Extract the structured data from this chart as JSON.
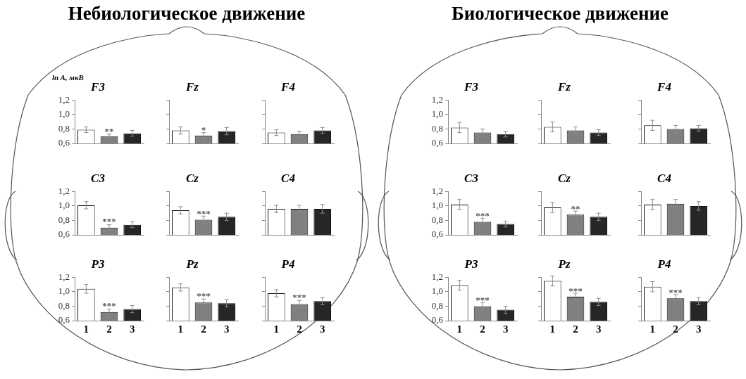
{
  "chart_data": [
    {
      "type": "bar",
      "title": "F3",
      "ylabel": "ln A, мкВ",
      "annotations": [
        "Небиологическое движение",
        {
          "text": "**",
          "x": "2",
          "y": 0.75
        }
      ],
      "categories": [
        "1",
        "2",
        "3"
      ],
      "values": [
        0.79,
        0.7,
        0.74
      ],
      "errors": [
        0.04,
        0.03,
        0.04
      ],
      "colors": [
        "#ffffff",
        "#808080",
        "#262626"
      ],
      "ylim": [
        0.6,
        1.2
      ],
      "yticks": [
        {
          "value": 0.6,
          "label": "0,6"
        },
        {
          "value": 0.8,
          "label": "0,8"
        },
        {
          "value": 1.0,
          "label": "1,0"
        },
        {
          "value": 1.2,
          "label": "1,2"
        }
      ],
      "grid": false,
      "legend": false,
      "tick_labels": "y"
    },
    {
      "type": "bar",
      "title": "Fz",
      "annotations": [
        {
          "text": "*",
          "x": "2",
          "y": 0.77
        }
      ],
      "categories": [
        "1",
        "2",
        "3"
      ],
      "values": [
        0.78,
        0.71,
        0.77
      ],
      "errors": [
        0.05,
        0.04,
        0.05
      ],
      "colors": [
        "#ffffff",
        "#808080",
        "#262626"
      ],
      "ylim": [
        0.6,
        1.2
      ],
      "yticks": [
        {
          "value": 0.6,
          "label": null
        },
        {
          "value": 0.8,
          "label": null
        },
        {
          "value": 1.0,
          "label": null
        },
        {
          "value": 1.2,
          "label": null
        }
      ],
      "grid": false,
      "legend": false,
      "tick_labels": false
    },
    {
      "type": "bar",
      "title": "F4",
      "categories": [
        "1",
        "2",
        "3"
      ],
      "values": [
        0.75,
        0.73,
        0.78
      ],
      "errors": [
        0.04,
        0.04,
        0.04
      ],
      "colors": [
        "#ffffff",
        "#808080",
        "#262626"
      ],
      "ylim": [
        0.6,
        1.2
      ],
      "yticks": [
        {
          "value": 0.6,
          "label": null
        },
        {
          "value": 0.8,
          "label": null
        },
        {
          "value": 1.0,
          "label": null
        },
        {
          "value": 1.2,
          "label": null
        }
      ],
      "grid": false,
      "legend": false,
      "tick_labels": false
    },
    {
      "type": "bar",
      "title": "C3",
      "annotations": [
        {
          "text": "***",
          "x": "2",
          "y": 0.77
        }
      ],
      "categories": [
        "1",
        "2",
        "3"
      ],
      "values": [
        1.01,
        0.7,
        0.74
      ],
      "errors": [
        0.05,
        0.04,
        0.04
      ],
      "colors": [
        "#ffffff",
        "#808080",
        "#262626"
      ],
      "ylim": [
        0.6,
        1.2
      ],
      "yticks": [
        {
          "value": 0.6,
          "label": "0,6"
        },
        {
          "value": 0.8,
          "label": "0,8"
        },
        {
          "value": 1.0,
          "label": "1,0"
        },
        {
          "value": 1.2,
          "label": "1,2"
        }
      ],
      "grid": false,
      "legend": false,
      "tick_labels": "y"
    },
    {
      "type": "bar",
      "title": "Cz",
      "annotations": [
        {
          "text": "***",
          "x": "2",
          "y": 0.88
        }
      ],
      "categories": [
        "1",
        "2",
        "3"
      ],
      "values": [
        0.94,
        0.81,
        0.85
      ],
      "errors": [
        0.05,
        0.05,
        0.05
      ],
      "colors": [
        "#ffffff",
        "#808080",
        "#262626"
      ],
      "ylim": [
        0.6,
        1.2
      ],
      "yticks": [
        {
          "value": 0.6,
          "label": null
        },
        {
          "value": 0.8,
          "label": null
        },
        {
          "value": 1.0,
          "label": null
        },
        {
          "value": 1.2,
          "label": null
        }
      ],
      "grid": false,
      "legend": false,
      "tick_labels": false
    },
    {
      "type": "bar",
      "title": "C4",
      "categories": [
        "1",
        "2",
        "3"
      ],
      "values": [
        0.96,
        0.96,
        0.96
      ],
      "errors": [
        0.05,
        0.05,
        0.06
      ],
      "colors": [
        "#ffffff",
        "#808080",
        "#262626"
      ],
      "ylim": [
        0.6,
        1.2
      ],
      "yticks": [
        {
          "value": 0.6,
          "label": null
        },
        {
          "value": 0.8,
          "label": null
        },
        {
          "value": 1.0,
          "label": null
        },
        {
          "value": 1.2,
          "label": null
        }
      ],
      "grid": false,
      "legend": false,
      "tick_labels": false
    },
    {
      "type": "bar",
      "title": "P3",
      "annotations": [
        {
          "text": "***",
          "x": "2",
          "y": 0.79
        }
      ],
      "categories": [
        "1",
        "2",
        "3"
      ],
      "values": [
        1.04,
        0.72,
        0.76
      ],
      "errors": [
        0.06,
        0.04,
        0.05
      ],
      "colors": [
        "#ffffff",
        "#808080",
        "#262626"
      ],
      "ylim": [
        0.6,
        1.2
      ],
      "yticks": [
        {
          "value": 0.6,
          "label": "0,6"
        },
        {
          "value": 0.8,
          "label": "0,8"
        },
        {
          "value": 1.0,
          "label": "1,0"
        },
        {
          "value": 1.2,
          "label": "1,2"
        }
      ],
      "grid": false,
      "legend": false
    },
    {
      "type": "bar",
      "title": "Pz",
      "annotations": [
        {
          "text": "***",
          "x": "2",
          "y": 0.93
        }
      ],
      "categories": [
        "1",
        "2",
        "3"
      ],
      "values": [
        1.06,
        0.85,
        0.84
      ],
      "errors": [
        0.05,
        0.05,
        0.05
      ],
      "colors": [
        "#ffffff",
        "#808080",
        "#262626"
      ],
      "ylim": [
        0.6,
        1.2
      ],
      "yticks": [
        {
          "value": 0.6,
          "label": null
        },
        {
          "value": 0.8,
          "label": null
        },
        {
          "value": 1.0,
          "label": null
        },
        {
          "value": 1.2,
          "label": null
        }
      ],
      "grid": false,
      "legend": false,
      "tick_labels": "x"
    },
    {
      "type": "bar",
      "title": "P4",
      "annotations": [
        {
          "text": "***",
          "x": "2",
          "y": 0.91
        }
      ],
      "categories": [
        "1",
        "2",
        "3"
      ],
      "values": [
        0.98,
        0.83,
        0.87
      ],
      "errors": [
        0.05,
        0.05,
        0.05
      ],
      "colors": [
        "#ffffff",
        "#808080",
        "#262626"
      ],
      "ylim": [
        0.6,
        1.2
      ],
      "yticks": [
        {
          "value": 0.6,
          "label": null
        },
        {
          "value": 0.8,
          "label": null
        },
        {
          "value": 1.0,
          "label": null
        },
        {
          "value": 1.2,
          "label": null
        }
      ],
      "grid": false,
      "legend": false,
      "tick_labels": "x"
    },
    {
      "type": "bar",
      "title": "F3",
      "annotations": [
        "Биологическое движение"
      ],
      "categories": [
        "1",
        "2",
        "3"
      ],
      "values": [
        0.82,
        0.75,
        0.73
      ],
      "errors": [
        0.07,
        0.05,
        0.04
      ],
      "colors": [
        "#ffffff",
        "#808080",
        "#262626"
      ],
      "ylim": [
        0.6,
        1.2
      ],
      "yticks": [
        {
          "value": 0.6,
          "label": "0,6"
        },
        {
          "value": 0.8,
          "label": "0,8"
        },
        {
          "value": 1.0,
          "label": "1,0"
        },
        {
          "value": 1.2,
          "label": "1,2"
        }
      ],
      "grid": false,
      "legend": false,
      "tick_labels": "y"
    },
    {
      "type": "bar",
      "title": "Fz",
      "categories": [
        "1",
        "2",
        "3"
      ],
      "values": [
        0.83,
        0.78,
        0.75
      ],
      "errors": [
        0.07,
        0.05,
        0.04
      ],
      "colors": [
        "#ffffff",
        "#808080",
        "#262626"
      ],
      "ylim": [
        0.6,
        1.2
      ],
      "yticks": [
        {
          "value": 0.6,
          "label": null
        },
        {
          "value": 0.8,
          "label": null
        },
        {
          "value": 1.0,
          "label": null
        },
        {
          "value": 1.2,
          "label": null
        }
      ],
      "grid": false,
      "legend": false,
      "tick_labels": false
    },
    {
      "type": "bar",
      "title": "F4",
      "categories": [
        "1",
        "2",
        "3"
      ],
      "values": [
        0.85,
        0.8,
        0.81
      ],
      "errors": [
        0.07,
        0.05,
        0.04
      ],
      "colors": [
        "#ffffff",
        "#808080",
        "#262626"
      ],
      "ylim": [
        0.6,
        1.2
      ],
      "yticks": [
        {
          "value": 0.6,
          "label": null
        },
        {
          "value": 0.8,
          "label": null
        },
        {
          "value": 1.0,
          "label": null
        },
        {
          "value": 1.2,
          "label": null
        }
      ],
      "grid": false,
      "legend": false,
      "tick_labels": false
    },
    {
      "type": "bar",
      "title": "C3",
      "annotations": [
        {
          "text": "***",
          "x": "2",
          "y": 0.85
        }
      ],
      "categories": [
        "1",
        "2",
        "3"
      ],
      "values": [
        1.02,
        0.78,
        0.75
      ],
      "errors": [
        0.07,
        0.05,
        0.04
      ],
      "colors": [
        "#ffffff",
        "#808080",
        "#262626"
      ],
      "ylim": [
        0.6,
        1.2
      ],
      "yticks": [
        {
          "value": 0.6,
          "label": "0,6"
        },
        {
          "value": 0.8,
          "label": "0,8"
        },
        {
          "value": 1.0,
          "label": "1,0"
        },
        {
          "value": 1.2,
          "label": "1,2"
        }
      ],
      "grid": false,
      "legend": false,
      "tick_labels": "y"
    },
    {
      "type": "bar",
      "title": "Cz",
      "annotations": [
        {
          "text": "**",
          "x": "2",
          "y": 0.95
        }
      ],
      "categories": [
        "1",
        "2",
        "3"
      ],
      "values": [
        0.98,
        0.88,
        0.85
      ],
      "errors": [
        0.07,
        0.05,
        0.05
      ],
      "colors": [
        "#ffffff",
        "#808080",
        "#262626"
      ],
      "ylim": [
        0.6,
        1.2
      ],
      "yticks": [
        {
          "value": 0.6,
          "label": null
        },
        {
          "value": 0.8,
          "label": null
        },
        {
          "value": 1.0,
          "label": null
        },
        {
          "value": 1.2,
          "label": null
        }
      ],
      "grid": false,
      "legend": false,
      "tick_labels": false
    },
    {
      "type": "bar",
      "title": "C4",
      "categories": [
        "1",
        "2",
        "3"
      ],
      "values": [
        1.02,
        1.03,
        1.0
      ],
      "errors": [
        0.07,
        0.06,
        0.06
      ],
      "colors": [
        "#ffffff",
        "#808080",
        "#262626"
      ],
      "ylim": [
        0.6,
        1.2
      ],
      "yticks": [
        {
          "value": 0.6,
          "label": null
        },
        {
          "value": 0.8,
          "label": null
        },
        {
          "value": 1.0,
          "label": null
        },
        {
          "value": 1.2,
          "label": null
        }
      ],
      "grid": false,
      "legend": false,
      "tick_labels": false
    },
    {
      "type": "bar",
      "title": "P3",
      "annotations": [
        {
          "text": "***",
          "x": "2",
          "y": 0.87
        }
      ],
      "categories": [
        "1",
        "2",
        "3"
      ],
      "values": [
        1.09,
        0.8,
        0.75
      ],
      "errors": [
        0.07,
        0.05,
        0.05
      ],
      "colors": [
        "#ffffff",
        "#808080",
        "#262626"
      ],
      "ylim": [
        0.6,
        1.2
      ],
      "yticks": [
        {
          "value": 0.6,
          "label": "0,6"
        },
        {
          "value": 0.8,
          "label": "0,8"
        },
        {
          "value": 1.0,
          "label": "1,0"
        },
        {
          "value": 1.2,
          "label": "1,2"
        }
      ],
      "grid": false,
      "legend": false
    },
    {
      "type": "bar",
      "title": "Pz",
      "annotations": [
        {
          "text": "***",
          "x": "2",
          "y": 1.0
        }
      ],
      "categories": [
        "1",
        "2",
        "3"
      ],
      "values": [
        1.15,
        0.93,
        0.86
      ],
      "errors": [
        0.07,
        0.05,
        0.05
      ],
      "colors": [
        "#ffffff",
        "#808080",
        "#262626"
      ],
      "ylim": [
        0.6,
        1.2
      ],
      "yticks": [
        {
          "value": 0.6,
          "label": null
        },
        {
          "value": 0.8,
          "label": null
        },
        {
          "value": 1.0,
          "label": null
        },
        {
          "value": 1.2,
          "label": null
        }
      ],
      "grid": false,
      "legend": false,
      "tick_labels": "x"
    },
    {
      "type": "bar",
      "title": "P4",
      "annotations": [
        {
          "text": "***",
          "x": "2",
          "y": 0.98
        }
      ],
      "categories": [
        "1",
        "2",
        "3"
      ],
      "values": [
        1.07,
        0.91,
        0.87
      ],
      "errors": [
        0.07,
        0.05,
        0.05
      ],
      "colors": [
        "#ffffff",
        "#808080",
        "#262626"
      ],
      "ylim": [
        0.6,
        1.2
      ],
      "yticks": [
        {
          "value": 0.6,
          "label": null
        },
        {
          "value": 0.8,
          "label": null
        },
        {
          "value": 1.0,
          "label": null
        },
        {
          "value": 1.2,
          "label": null
        }
      ],
      "grid": false,
      "legend": false,
      "tick_labels": "x"
    }
  ]
}
